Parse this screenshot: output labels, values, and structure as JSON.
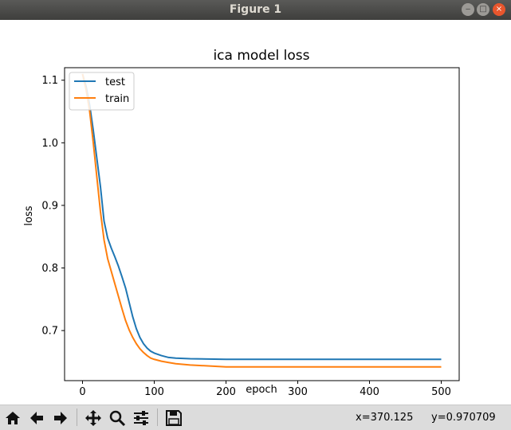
{
  "window": {
    "title": "Figure 1",
    "buttons": {
      "minimize": "‒",
      "maximize": "□",
      "close": "×"
    }
  },
  "toolbar": {
    "icons": [
      "home-icon",
      "back-icon",
      "forward-icon",
      "pan-icon",
      "zoom-icon",
      "configure-subplots-icon",
      "save-icon"
    ],
    "coords": {
      "x": "x=370.125",
      "y": "y=0.970709"
    }
  },
  "chart_data": {
    "type": "line",
    "title": "ica model loss",
    "xlabel": "epoch",
    "ylabel": "loss",
    "xlim": [
      -25,
      525
    ],
    "ylim": [
      0.62,
      1.12
    ],
    "xticks": [
      0,
      100,
      200,
      300,
      400,
      500
    ],
    "yticks": [
      0.7,
      0.8,
      0.9,
      1.0,
      1.1
    ],
    "xtick_labels": [
      "0",
      "100",
      "200",
      "300",
      "400",
      "500"
    ],
    "ytick_labels": [
      "0.7",
      "0.8",
      "0.9",
      "1.0",
      "1.1"
    ],
    "grid": false,
    "legend": "upper-left",
    "series": [
      {
        "name": "test",
        "color": "#1f77b4",
        "x": [
          0,
          5,
          10,
          15,
          20,
          25,
          30,
          35,
          40,
          45,
          50,
          55,
          60,
          65,
          70,
          75,
          80,
          85,
          90,
          95,
          100,
          110,
          120,
          130,
          150,
          200,
          300,
          400,
          500
        ],
        "y": [
          1.11,
          1.09,
          1.06,
          1.02,
          0.975,
          0.93,
          0.875,
          0.848,
          0.832,
          0.818,
          0.803,
          0.786,
          0.768,
          0.745,
          0.722,
          0.703,
          0.689,
          0.679,
          0.672,
          0.667,
          0.664,
          0.66,
          0.657,
          0.656,
          0.655,
          0.654,
          0.654,
          0.654,
          0.654
        ]
      },
      {
        "name": "train",
        "color": "#ff7f0e",
        "x": [
          0,
          5,
          10,
          15,
          20,
          25,
          30,
          35,
          40,
          45,
          50,
          55,
          60,
          65,
          70,
          75,
          80,
          85,
          90,
          95,
          100,
          110,
          120,
          130,
          150,
          200,
          300,
          400,
          500
        ],
        "y": [
          1.11,
          1.085,
          1.05,
          1.0,
          0.945,
          0.89,
          0.845,
          0.815,
          0.795,
          0.775,
          0.755,
          0.735,
          0.716,
          0.701,
          0.689,
          0.679,
          0.671,
          0.665,
          0.66,
          0.656,
          0.654,
          0.651,
          0.649,
          0.647,
          0.645,
          0.642,
          0.642,
          0.642,
          0.642
        ]
      }
    ]
  }
}
